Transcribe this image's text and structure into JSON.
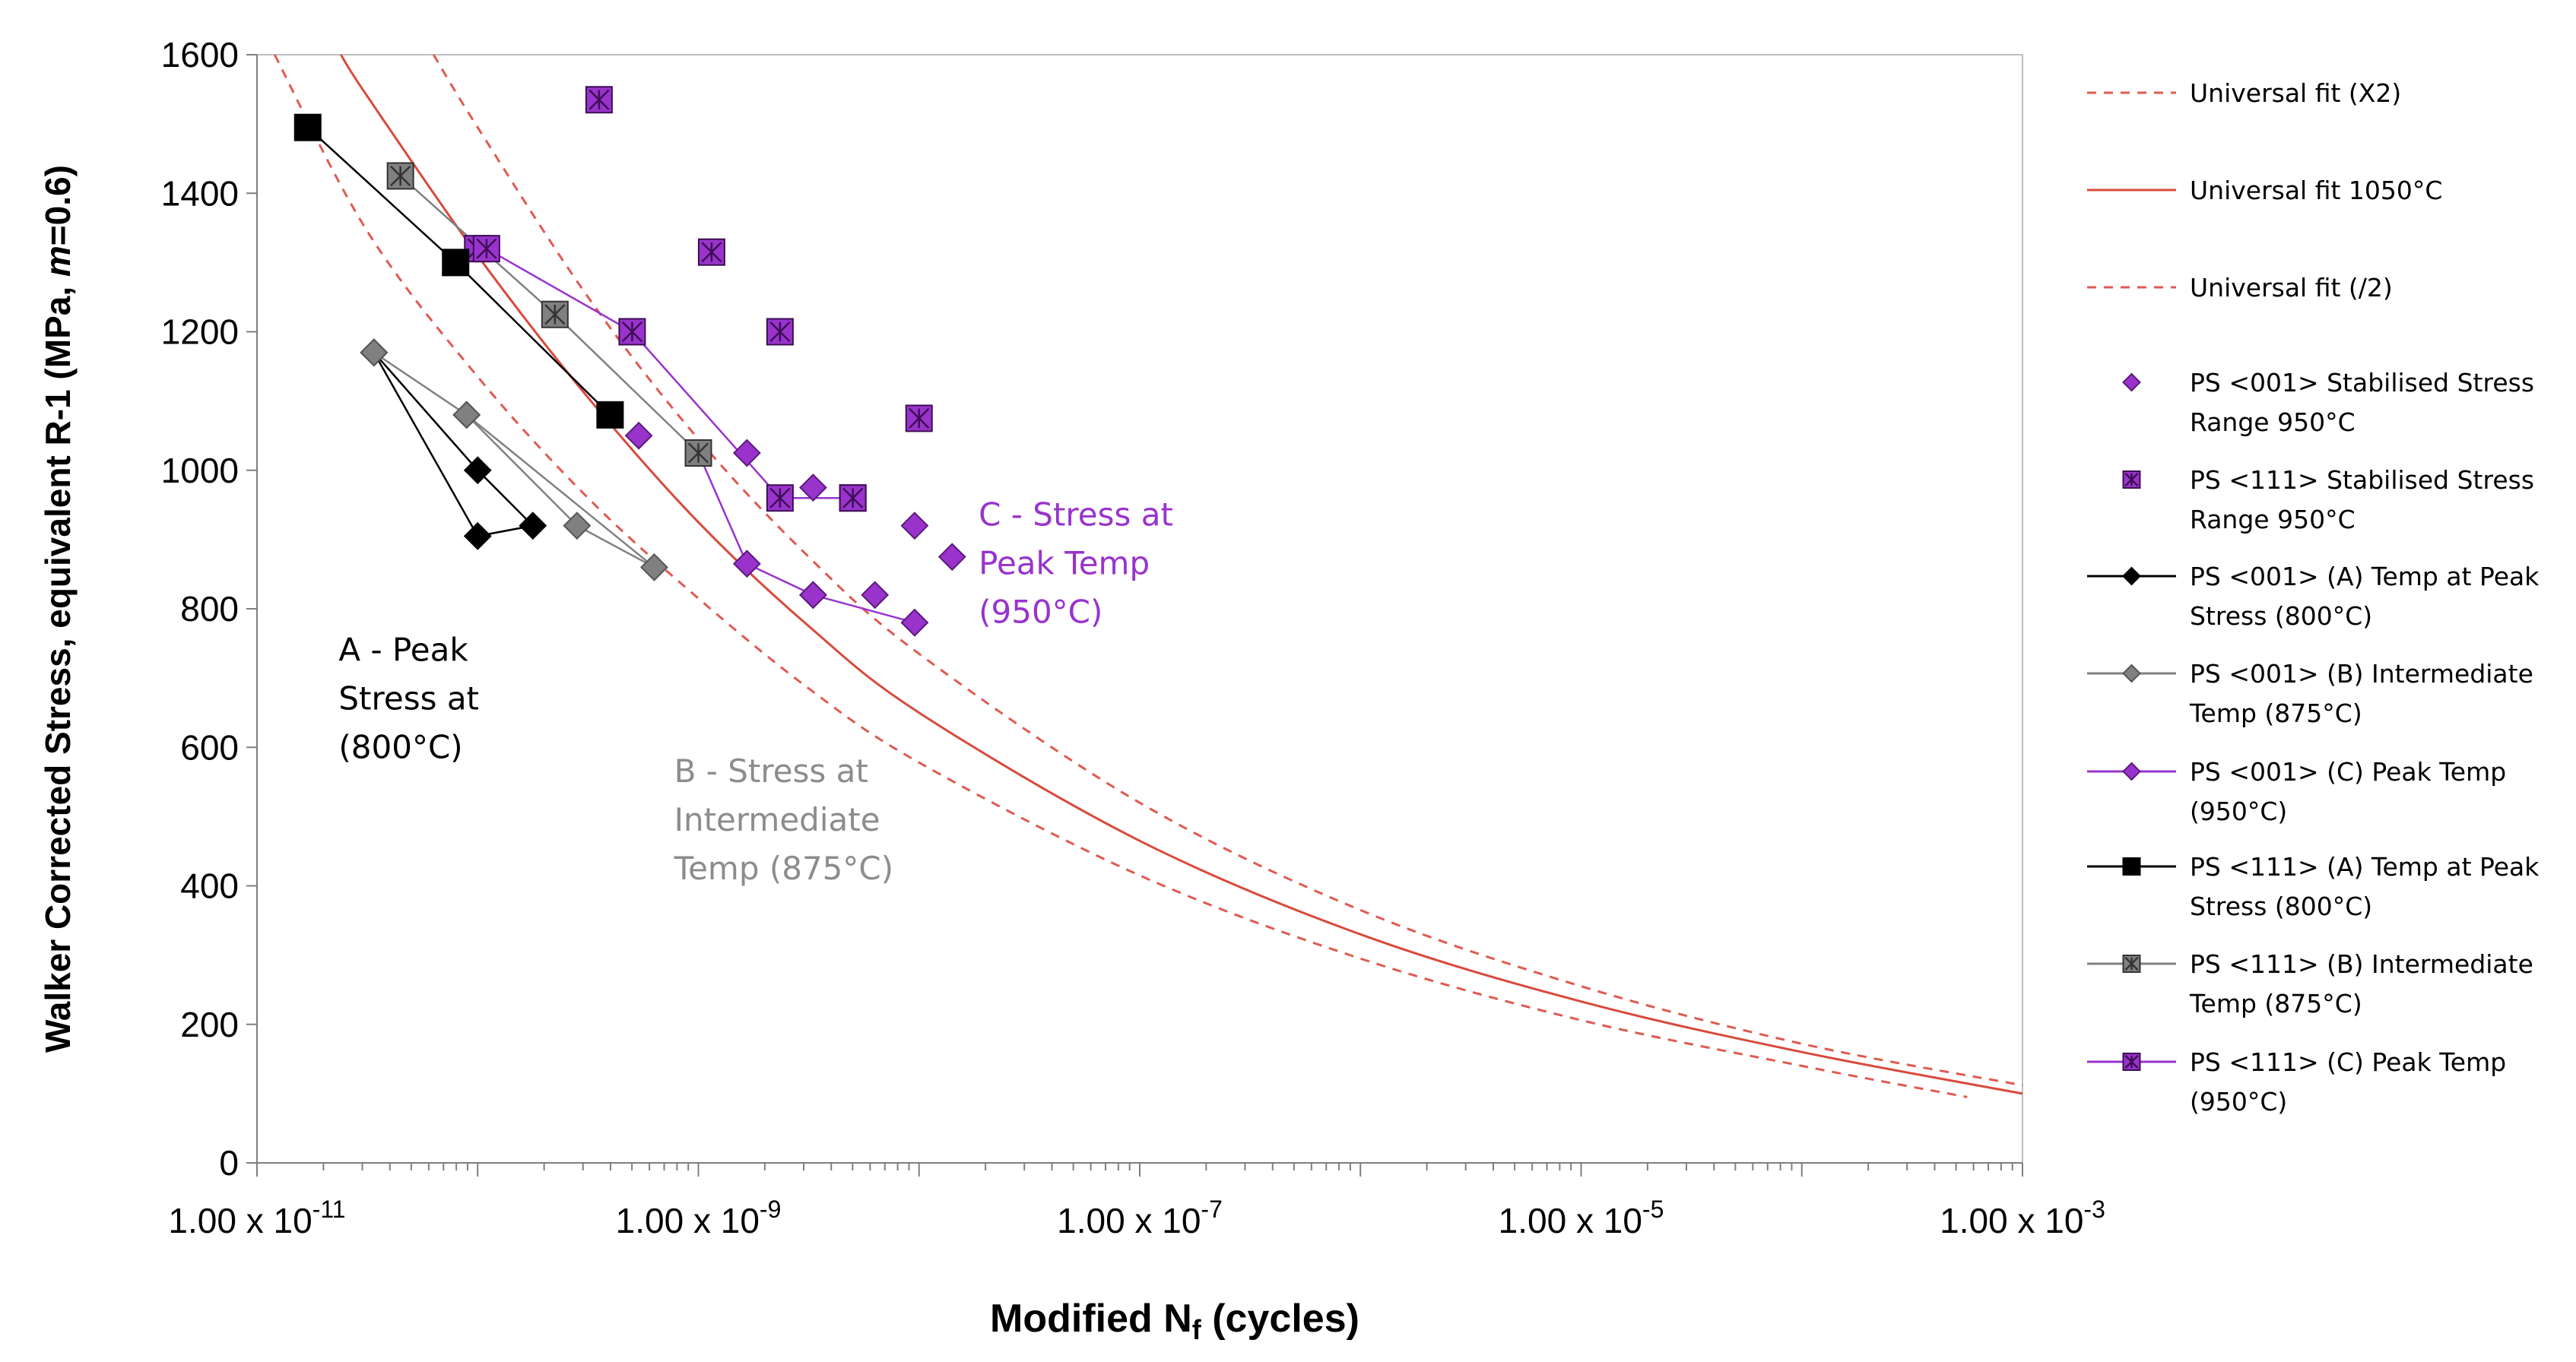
{
  "chart_data": {
    "type": "scatter",
    "title": "",
    "xlabel": "Modified N",
    "xlabel_sub": "f",
    "xlabel_suffix": " (cycles)",
    "ylabel": "Walker Corrected Stress, equivalent R-1 (MPa, m=0.6)",
    "xscale": "log",
    "xlim_log10": [
      -11,
      -3
    ],
    "ylim": [
      0,
      1600
    ],
    "y_ticks": [
      "0",
      "200",
      "400",
      "600",
      "800",
      "1000",
      "1200",
      "1400",
      "1600"
    ],
    "x_ticks": [
      {
        "base": "1.00 x 10",
        "exp": "-11"
      },
      {
        "base": "1.00 x 10",
        "exp": "-9"
      },
      {
        "base": "1.00 x 10",
        "exp": "-7"
      },
      {
        "base": "1.00 x 10",
        "exp": "-5"
      },
      {
        "base": "1.00 x 10",
        "exp": "-3"
      }
    ],
    "annotations": [
      {
        "lines": [
          "A - Peak",
          "Stress at",
          "(800°C)"
        ],
        "color": "#000000",
        "anchor_logx": -10.63,
        "anchor_y": 725
      },
      {
        "lines": [
          "B - Stress at",
          "Intermediate",
          "Temp (875°C)"
        ],
        "color": "#8c8c8c",
        "anchor_logx": -9.11,
        "anchor_y": 550
      },
      {
        "lines": [
          "C - Stress at",
          "Peak Temp",
          "(950°C)"
        ],
        "color": "#9933cc",
        "anchor_logx": -7.73,
        "anchor_y": 920
      }
    ],
    "series": [
      {
        "name": "Universal fit (X2)",
        "kind": "curve",
        "style": "dashed",
        "color": "#e05a50",
        "x_log10": [
          -10.2,
          -10,
          -9.5,
          -9,
          -8.5,
          -8,
          -7,
          -6,
          -5,
          -4,
          -3
        ],
        "y": [
          1600,
          1495,
          1250,
          1045,
          875,
          735,
          520,
          365,
          255,
          172,
          112
        ]
      },
      {
        "name": "Universal fit 1050°C",
        "kind": "curve",
        "style": "solid",
        "color": "#d84a3c",
        "x_log10": [
          -10.62,
          -10.5,
          -10,
          -9.5,
          -9,
          -8.5,
          -8,
          -7,
          -6,
          -5,
          -4,
          -3
        ],
        "y": [
          1600,
          1540,
          1310,
          1105,
          925,
          775,
          650,
          465,
          330,
          233,
          160,
          100
        ]
      },
      {
        "name": "Universal fit (/2)",
        "kind": "curve",
        "style": "dashed",
        "color": "#e05a50",
        "x_log10": [
          -10.92,
          -10.5,
          -10,
          -9.5,
          -9,
          -8.5,
          -8,
          -7,
          -6,
          -5,
          -4,
          -3.25
        ],
        "y": [
          1600,
          1345,
          1135,
          960,
          815,
          685,
          578,
          415,
          295,
          206,
          140,
          95
        ]
      },
      {
        "name": "PS <001> Stabilised Stress Range 950°C",
        "kind": "points",
        "marker": "diamond",
        "color": "#9933cc",
        "stroke": "#5b1b7a",
        "x_log10": [
          -9.27,
          -8.78,
          -8.48,
          -8.2,
          -8.02,
          -8.02,
          -7.85
        ],
        "y": [
          1050,
          1025,
          975,
          820,
          920,
          780,
          875
        ]
      },
      {
        "name": "PS <111> Stabilised Stress Range 950°C",
        "kind": "points",
        "marker": "xsquare",
        "color": "#9933cc",
        "stroke": "#3d0f55",
        "x_log10": [
          -9.45,
          -10.0,
          -8.94,
          -8.63,
          -8.3,
          -8.0
        ],
        "y": [
          1535,
          1320,
          1315,
          1200,
          960,
          1075
        ]
      },
      {
        "name": "PS <001> (A) Temp at Peak Stress (800°C)",
        "kind": "line",
        "marker": "diamond",
        "color": "#000000",
        "stroke": "#000000",
        "x_log10": [
          -10.47,
          -10.0,
          -9.75,
          -10.0,
          -10.47
        ],
        "y": [
          1170,
          1000,
          920,
          905,
          1170
        ]
      },
      {
        "name": "PS <001> (B) Intermediate Temp (875°C)",
        "kind": "line",
        "marker": "diamond",
        "color": "#808080",
        "stroke": "#555555",
        "x_log10": [
          -10.47,
          -10.05,
          -9.55,
          -9.2,
          -10.05
        ],
        "y": [
          1170,
          1080,
          920,
          860,
          1080
        ]
      },
      {
        "name": "PS <001> (C) Peak Temp (950°C)",
        "kind": "line",
        "marker": "diamond",
        "color": "#9933cc",
        "stroke": "#5b1b7a",
        "x_log10": [
          -9.0,
          -8.78,
          -8.48,
          -8.02,
          -8.48
        ],
        "y": [
          1025,
          865,
          820,
          780,
          820
        ]
      },
      {
        "name": "PS <111> (A) Temp at Peak Stress (800°C)",
        "kind": "line",
        "marker": "square",
        "color": "#000000",
        "stroke": "#000000",
        "x_log10": [
          -10.77,
          -10.1,
          -9.4
        ],
        "y": [
          1495,
          1300,
          1080
        ]
      },
      {
        "name": "PS <111> (B) Intermediate Temp (875°C)",
        "kind": "line",
        "marker": "xsquare",
        "color": "#808080",
        "stroke": "#333333",
        "x_log10": [
          -10.35,
          -9.65,
          -9.0
        ],
        "y": [
          1425,
          1225,
          1025
        ]
      },
      {
        "name": "PS <111> (C) Peak Temp (950°C)",
        "kind": "line",
        "marker": "xsquare",
        "color": "#9933cc",
        "stroke": "#3d0f55",
        "x_log10": [
          -9.96,
          -9.3,
          -8.63,
          -8.3
        ],
        "y": [
          1320,
          1200,
          960,
          960
        ]
      }
    ],
    "legend": {
      "placement": "right",
      "items": [
        {
          "series": 0,
          "lines": [
            "Universal fit (X2)"
          ]
        },
        {
          "series": 1,
          "lines": [
            "Universal fit 1050°C"
          ]
        },
        {
          "series": 2,
          "lines": [
            "Universal fit (/2)"
          ]
        },
        {
          "series": 3,
          "lines": [
            "PS <001> Stabilised Stress",
            "Range 950°C"
          ]
        },
        {
          "series": 4,
          "lines": [
            "PS <111> Stabilised Stress",
            "Range 950°C"
          ]
        },
        {
          "series": 5,
          "lines": [
            "PS <001> (A) Temp at Peak",
            "Stress (800°C)"
          ]
        },
        {
          "series": 6,
          "lines": [
            "PS <001> (B) Intermediate",
            "Temp (875°C)"
          ]
        },
        {
          "series": 7,
          "lines": [
            "PS <001> (C) Peak Temp",
            "(950°C)"
          ]
        },
        {
          "series": 8,
          "lines": [
            "PS <111> (A) Temp at Peak",
            "Stress (800°C)"
          ]
        },
        {
          "series": 9,
          "lines": [
            "PS <111> (B) Intermediate",
            "Temp (875°C)"
          ]
        },
        {
          "series": 10,
          "lines": [
            "PS <111> (C) Peak Temp",
            "(950°C)"
          ]
        }
      ]
    }
  }
}
